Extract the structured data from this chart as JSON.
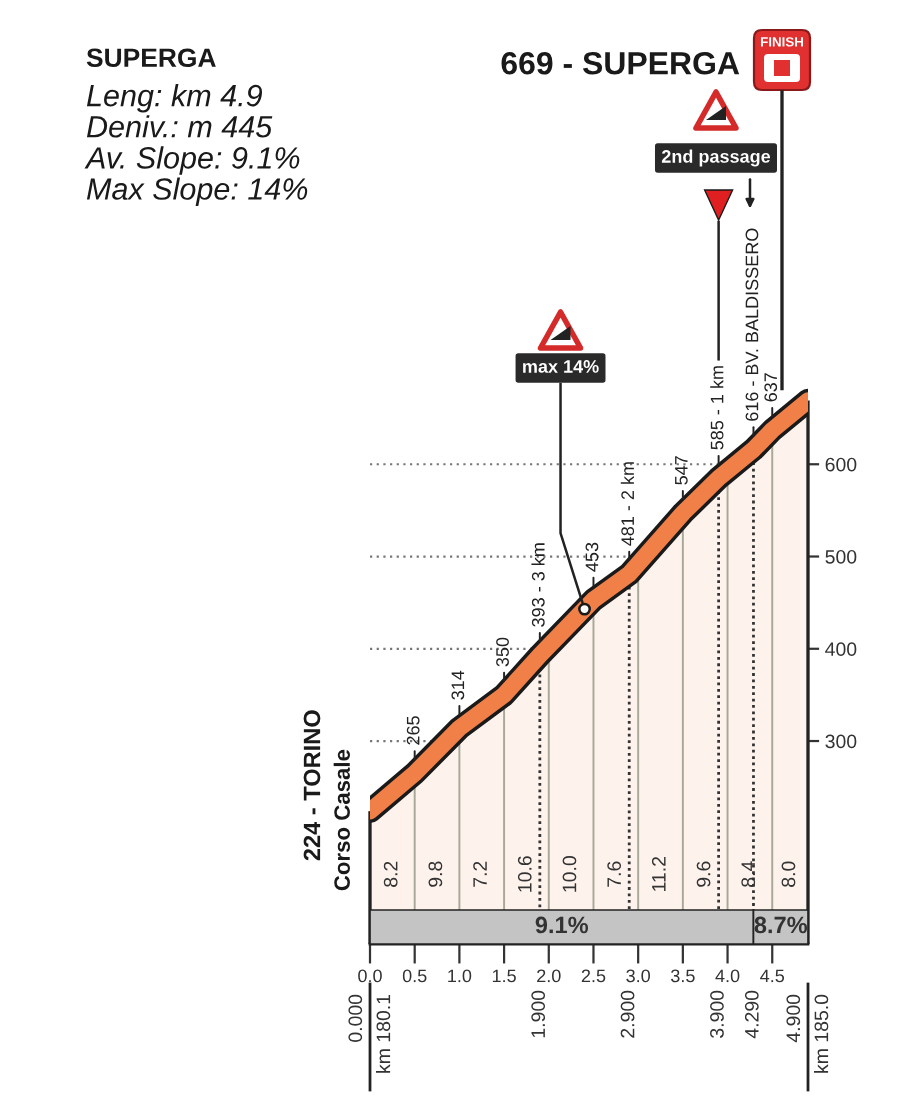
{
  "chart_data": {
    "type": "area",
    "title": "SUPERGA",
    "subtitle": "Leng: km 4.9\nDeniv.: m 445\nAv. Slope: 9.1%\nMax Slope: 14%",
    "x": [
      0,
      0.5,
      1.0,
      1.5,
      1.9,
      2.5,
      2.9,
      3.5,
      3.9,
      4.29,
      4.5,
      4.9
    ],
    "values": [
      224,
      265,
      314,
      350,
      393,
      453,
      481,
      547,
      585,
      616,
      637,
      669
    ],
    "color": "#f08048",
    "value_labels": [
      null,
      "265",
      "314",
      "350",
      "393 - 3 km",
      "453",
      "481 - 2 km",
      "547",
      "585 - 1 km",
      "616 - BV. BALDISSERO",
      "637",
      null
    ],
    "xlim": [
      0,
      4.9
    ],
    "xticks": [
      {
        "value": 0,
        "label": "0.0"
      },
      0.5,
      {
        "value": 1,
        "label": "1.0"
      },
      1.5,
      {
        "value": 2,
        "label": "2.0"
      },
      2.5,
      {
        "value": 3,
        "label": "3.0"
      },
      3.5,
      {
        "value": 4,
        "label": "4.0"
      },
      4.5
    ],
    "ylim": [
      80,
      700
    ],
    "yticks": [
      300,
      400,
      500,
      600
    ],
    "grid": true,
    "ref_lines": [
      {
        "axis": "x",
        "value": 0,
        "label": "0.000",
        "line_style": "solid",
        "color": "#222222"
      },
      {
        "axis": "x",
        "value": 1.9,
        "label": "1.900",
        "line_style": "dotted",
        "color": "#333333"
      },
      {
        "axis": "x",
        "value": 2.9,
        "label": "2.900",
        "line_style": "dotted",
        "color": "#333333"
      },
      {
        "axis": "x",
        "value": 3.9,
        "label": "3.900",
        "line_style": "dotted",
        "color": "#333333"
      },
      {
        "axis": "x",
        "value": 4.29,
        "label": "4.290",
        "line_style": "dotted",
        "color": "#333333"
      },
      {
        "axis": "x",
        "value": 4.9,
        "label": "4.900",
        "line_style": "solid",
        "color": "#222222"
      }
    ],
    "bands": [
      {
        "axis": "x",
        "from": 0,
        "to": 4.29,
        "label": "9.1%",
        "color": "#c4c4c4"
      },
      {
        "axis": "x",
        "from": 4.29,
        "to": 4.9,
        "label": "8.7%",
        "color": "#c4c4c4"
      }
    ],
    "annotations": [
      {
        "text": "224 - TORINO",
        "x": 0,
        "y": 224
      },
      "Corso Casale",
      "669 - SUPERGA",
      "FINISH",
      {
        "text": "max 14%",
        "x": 2.4,
        "y": 443
      },
      "2nd passage",
      "km 180.1",
      "km 185.0",
      "8.2",
      "9.8",
      "7.2",
      "10.6",
      "10.0",
      "7.6",
      "11.2",
      "9.6",
      "8.4",
      "8.0"
    ]
  }
}
